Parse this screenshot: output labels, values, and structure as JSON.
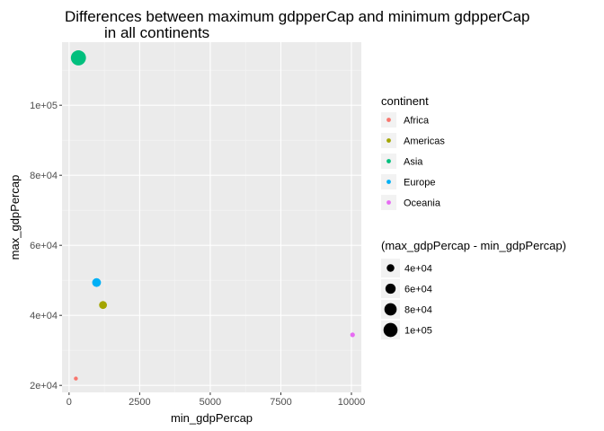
{
  "chart_data": {
    "type": "scatter",
    "title_lines": [
      "Differences between maximum gdpperCap and minimum gdpperCap",
      "in all continents"
    ],
    "xlabel": "min_gdpPercap",
    "ylabel": "max_gdpPercap",
    "xlim": [
      -250,
      10350
    ],
    "ylim": [
      18000,
      118000
    ],
    "x_ticks": [
      0,
      2500,
      5000,
      7500,
      10000
    ],
    "x_tick_labels": [
      "0",
      "2500",
      "5000",
      "7500",
      "10000"
    ],
    "y_ticks": [
      20000,
      40000,
      60000,
      80000,
      100000
    ],
    "y_tick_labels": [
      "2e+04",
      "4e+04",
      "6e+04",
      "8e+04",
      "1e+05"
    ],
    "grid": true,
    "legend_position": "right",
    "points": [
      {
        "continent": "Africa",
        "x": 241,
        "y": 21951,
        "size": 21710
      },
      {
        "continent": "Americas",
        "x": 1202,
        "y": 42952,
        "size": 41750
      },
      {
        "continent": "Asia",
        "x": 331,
        "y": 113523,
        "size": 113192
      },
      {
        "continent": "Europe",
        "x": 974,
        "y": 49357,
        "size": 48383
      },
      {
        "continent": "Oceania",
        "x": 10040,
        "y": 34435,
        "size": 24395
      }
    ],
    "color_legend": {
      "title": "continent",
      "entries": [
        {
          "label": "Africa",
          "color": "#F8766D"
        },
        {
          "label": "Americas",
          "color": "#A3A500"
        },
        {
          "label": "Asia",
          "color": "#00BF7D"
        },
        {
          "label": "Europe",
          "color": "#00B0F6"
        },
        {
          "label": "Oceania",
          "color": "#E76BF3"
        }
      ]
    },
    "size_legend": {
      "title": "(max_gdpPercap - min_gdpPercap)",
      "entries": [
        {
          "label": "4e+04",
          "value": 40000
        },
        {
          "label": "6e+04",
          "value": 60000
        },
        {
          "label": "8e+04",
          "value": 80000
        },
        {
          "label": "1e+05",
          "value": 100000
        }
      ]
    }
  }
}
